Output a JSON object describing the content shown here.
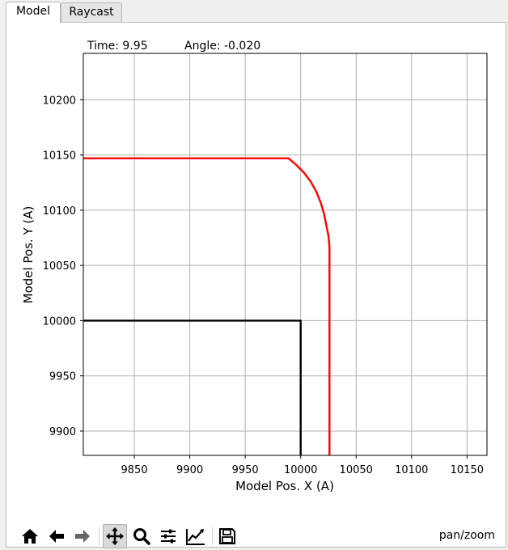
{
  "tabs": [
    {
      "label": "Model",
      "active": true
    },
    {
      "label": "Raycast",
      "active": false
    }
  ],
  "status": {
    "time_text": "Time: 9.95",
    "angle_text": "Angle: -0.020"
  },
  "chart_data": {
    "type": "line",
    "title": "",
    "xlabel": "Model Pos. X (A)",
    "ylabel": "Model Pos. Y (A)",
    "xlim": [
      9804,
      10168
    ],
    "ylim": [
      9878,
      10242
    ],
    "xticks": [
      9850,
      9900,
      9950,
      10000,
      10050,
      10100,
      10150
    ],
    "yticks": [
      9900,
      9950,
      10000,
      10050,
      10100,
      10150,
      10200
    ],
    "grid": true,
    "series": [
      {
        "color": "#000000",
        "x": [
          9804,
          10000,
          10000
        ],
        "y": [
          10000,
          10000,
          9878
        ]
      },
      {
        "color": "#ff0000",
        "x": [
          9804,
          9989,
          9996,
          10003,
          10009,
          10014,
          10018,
          10021,
          10023,
          10025,
          10026,
          10026,
          10026
        ],
        "y": [
          10147,
          10147,
          10141,
          10134,
          10126,
          10117,
          10107,
          10097,
          10087,
          10077,
          10067,
          10060,
          9878
        ]
      }
    ]
  },
  "toolbar": {
    "buttons": [
      "home-icon",
      "back-icon",
      "forward-icon",
      "pan-icon",
      "zoom-icon",
      "configure-subplots-icon",
      "edit-axis-icon",
      "save-icon"
    ],
    "mode_label": "pan/zoom"
  }
}
